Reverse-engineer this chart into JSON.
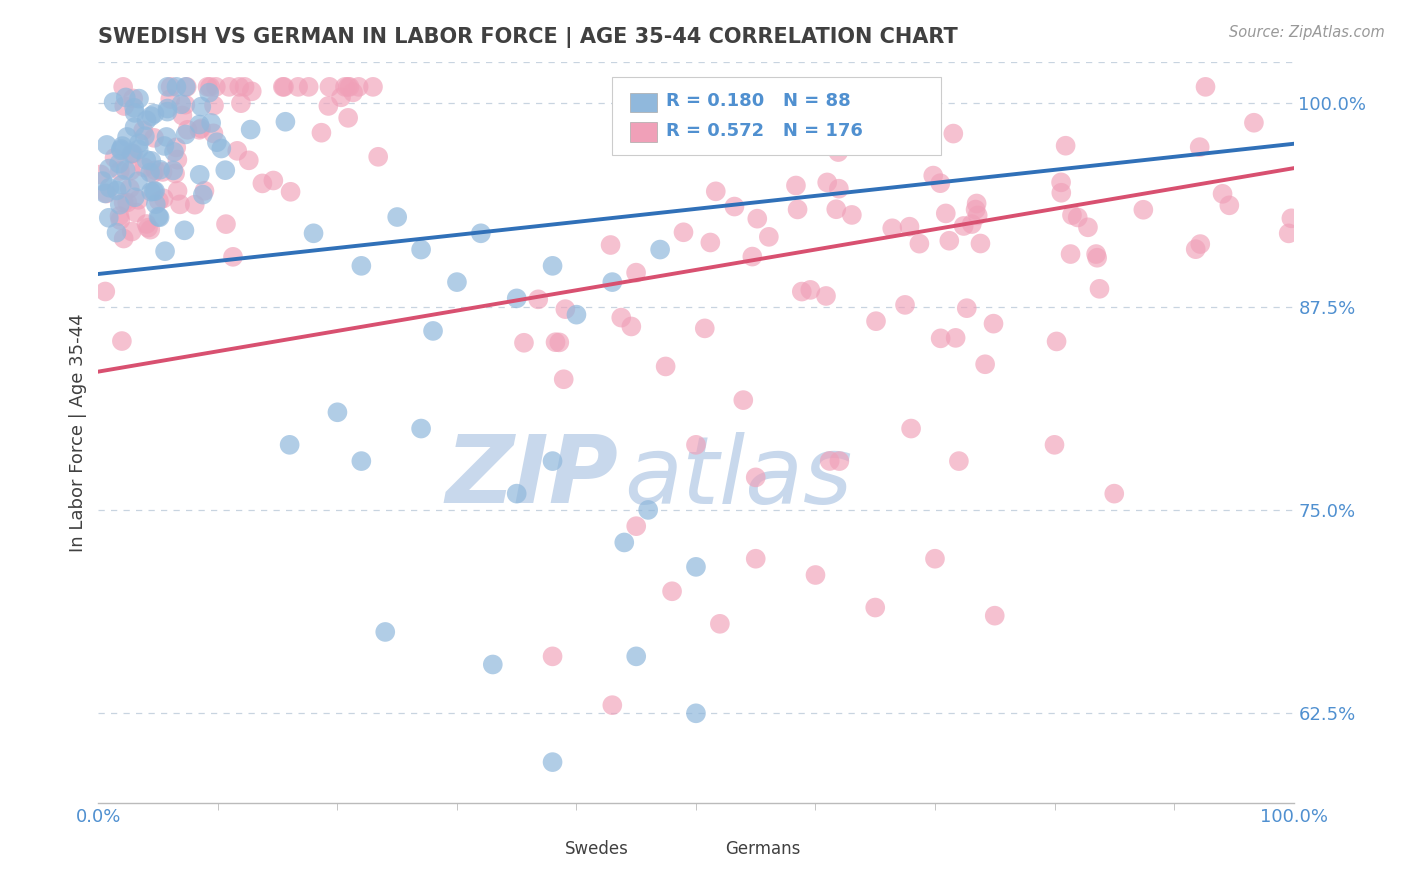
{
  "title": "SWEDISH VS GERMAN IN LABOR FORCE | AGE 35-44 CORRELATION CHART",
  "source": "Source: ZipAtlas.com",
  "ylabel": "In Labor Force | Age 35-44",
  "xlim": [
    0.0,
    1.0
  ],
  "ylim": [
    0.57,
    1.025
  ],
  "yticks": [
    0.625,
    0.75,
    0.875,
    1.0
  ],
  "ytick_labels": [
    "62.5%",
    "75.0%",
    "87.5%",
    "100.0%"
  ],
  "xtick_labels": [
    "0.0%",
    "100.0%"
  ],
  "legend_entries": [
    {
      "label": "Swedes",
      "color": "#a8c8e8",
      "R": "0.180",
      "N": "88"
    },
    {
      "label": "Germans",
      "color": "#f4b0c0",
      "R": "0.572",
      "N": "176"
    }
  ],
  "swedish_color": "#90b8dc",
  "german_color": "#f0a0b8",
  "swedish_line_color": "#3070b8",
  "german_line_color": "#d85070",
  "watermark_zip": "ZIP",
  "watermark_atlas": "atlas",
  "watermark_color": "#c8d8ec",
  "background_color": "#ffffff",
  "grid_color": "#c8d4e0",
  "title_color": "#404040",
  "axis_label_color": "#5090d0",
  "swedish_line_x": [
    0.0,
    1.0
  ],
  "swedish_line_y": [
    0.895,
    0.975
  ],
  "german_line_x": [
    0.0,
    1.0
  ],
  "german_line_y": [
    0.835,
    0.96
  ],
  "seed": 42
}
